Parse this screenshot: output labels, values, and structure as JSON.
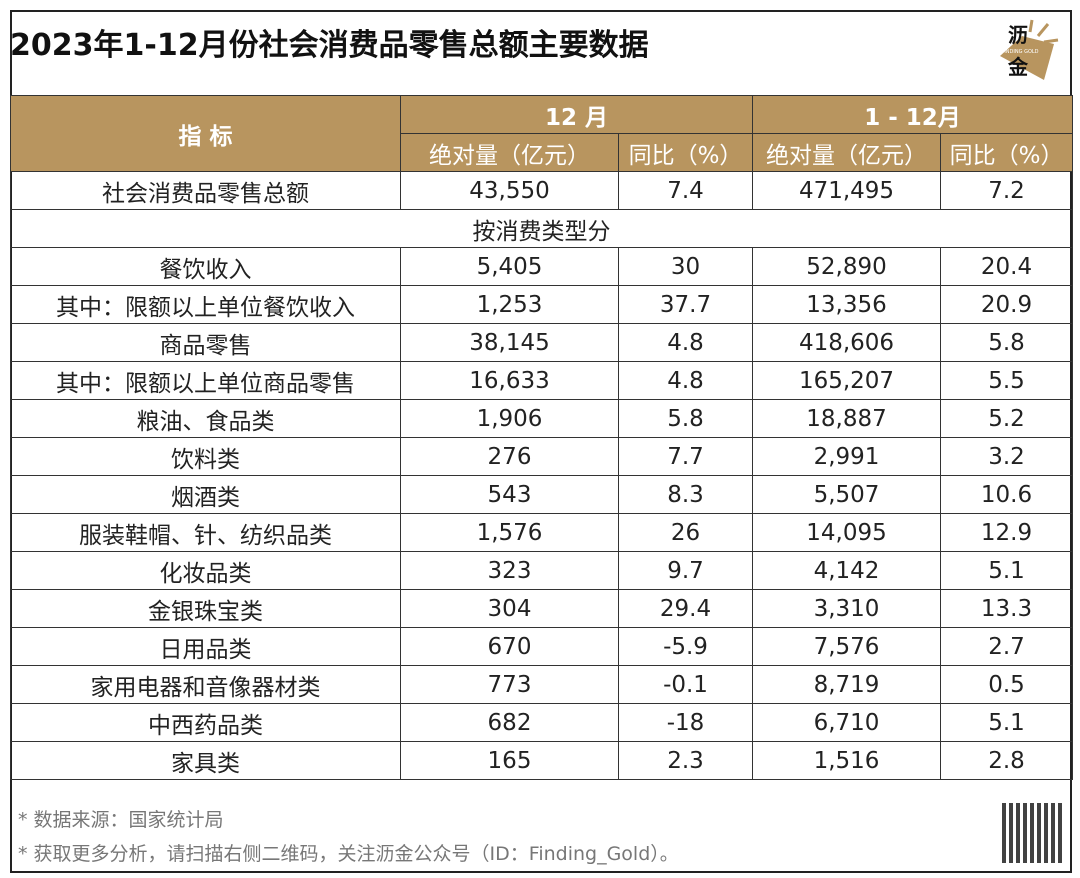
{
  "title": "2023年1-12月份社会消费品零售总额主要数据",
  "logo": {
    "char1": "沥",
    "char2": "金",
    "en": "FINDING GOLD",
    "color": "#b8955f"
  },
  "header": {
    "indicator": "指 标",
    "period1": "12 月",
    "period2": "1 - 12月",
    "abs": "绝对量（亿元）",
    "yoy": "同比（%）"
  },
  "total_row": {
    "label": "社会消费品零售总额",
    "v": [
      "43,550",
      "7.4",
      "471,495",
      "7.2"
    ]
  },
  "section": "按消费类型分",
  "rows": [
    {
      "label": "餐饮收入",
      "v": [
        "5,405",
        "30",
        "52,890",
        "20.4"
      ]
    },
    {
      "label": "其中：限额以上单位餐饮收入",
      "v": [
        "1,253",
        "37.7",
        "13,356",
        "20.9"
      ]
    },
    {
      "label": "商品零售",
      "v": [
        "38,145",
        "4.8",
        "418,606",
        "5.8"
      ]
    },
    {
      "label": "其中：限额以上单位商品零售",
      "v": [
        "16,633",
        "4.8",
        "165,207",
        "5.5"
      ]
    },
    {
      "label": "粮油、食品类",
      "v": [
        "1,906",
        "5.8",
        "18,887",
        "5.2"
      ]
    },
    {
      "label": "饮料类",
      "v": [
        "276",
        "7.7",
        "2,991",
        "3.2"
      ]
    },
    {
      "label": "烟酒类",
      "v": [
        "543",
        "8.3",
        "5,507",
        "10.6"
      ]
    },
    {
      "label": "服装鞋帽、针、纺织品类",
      "v": [
        "1,576",
        "26",
        "14,095",
        "12.9"
      ]
    },
    {
      "label": "化妆品类",
      "v": [
        "323",
        "9.7",
        "4,142",
        "5.1"
      ]
    },
    {
      "label": "金银珠宝类",
      "v": [
        "304",
        "29.4",
        "3,310",
        "13.3"
      ]
    },
    {
      "label": "日用品类",
      "v": [
        "670",
        "-5.9",
        "7,576",
        "2.7"
      ]
    },
    {
      "label": "家用电器和音像器材类",
      "v": [
        "773",
        "-0.1",
        "8,719",
        "0.5"
      ]
    },
    {
      "label": "中西药品类",
      "v": [
        "682",
        "-18",
        "6,710",
        "5.1"
      ]
    },
    {
      "label": "家具类",
      "v": [
        "165",
        "2.3",
        "1,516",
        "2.8"
      ]
    }
  ],
  "footer": {
    "source": "* 数据来源：国家统计局",
    "note": "* 获取更多分析，请扫描右侧二维码，关注沥金公众号（ID：Finding_Gold）。"
  }
}
